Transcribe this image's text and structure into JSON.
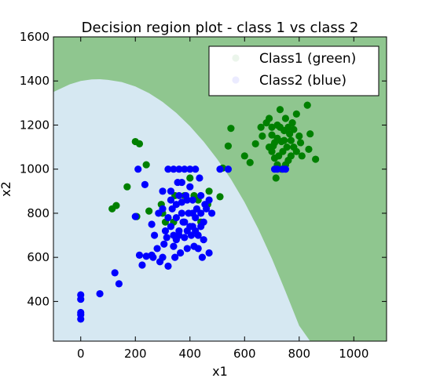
{
  "chart_data": {
    "type": "scatter",
    "title": "Decision region plot - class 1 vs class 2",
    "xlabel": "x1",
    "ylabel": "x2",
    "xlim": [
      -100,
      1120
    ],
    "ylim": [
      220,
      1600
    ],
    "xticks": [
      0,
      200,
      400,
      600,
      800,
      1000
    ],
    "yticks": [
      400,
      600,
      800,
      1000,
      1200,
      1400,
      1600
    ],
    "grid": false,
    "legend_position": "top-right",
    "region_colors": {
      "class1": "#8fc68f",
      "class2": "#d6e8f2"
    },
    "decision_boundary": {
      "x": [
        -100,
        -40,
        0,
        40,
        70,
        100,
        150,
        200,
        250,
        300,
        350,
        400,
        450,
        500,
        550,
        600,
        650,
        700,
        750,
        800,
        840
      ],
      "y": [
        1350,
        1385,
        1400,
        1407,
        1408,
        1405,
        1395,
        1375,
        1345,
        1305,
        1255,
        1195,
        1125,
        1045,
        955,
        850,
        730,
        595,
        445,
        290,
        220
      ]
    },
    "series": [
      {
        "name": "Class1 (green)",
        "color": "#008000",
        "points": [
          [
            200,
            1125
          ],
          [
            215,
            1115
          ],
          [
            240,
            1020
          ],
          [
            115,
            820
          ],
          [
            130,
            835
          ],
          [
            170,
            920
          ],
          [
            205,
            785
          ],
          [
            250,
            810
          ],
          [
            295,
            840
          ],
          [
            300,
            800
          ],
          [
            310,
            760
          ],
          [
            340,
            760
          ],
          [
            345,
            880
          ],
          [
            380,
            880
          ],
          [
            400,
            960
          ],
          [
            415,
            880
          ],
          [
            430,
            860
          ],
          [
            440,
            760
          ],
          [
            465,
            840
          ],
          [
            470,
            900
          ],
          [
            510,
            875
          ],
          [
            520,
            1005
          ],
          [
            540,
            1105
          ],
          [
            550,
            1185
          ],
          [
            600,
            1060
          ],
          [
            620,
            1030
          ],
          [
            640,
            1115
          ],
          [
            660,
            1190
          ],
          [
            665,
            1150
          ],
          [
            680,
            1210
          ],
          [
            690,
            1230
          ],
          [
            700,
            1155
          ],
          [
            705,
            1105
          ],
          [
            710,
            1050
          ],
          [
            715,
            960
          ],
          [
            720,
            1200
          ],
          [
            730,
            1270
          ],
          [
            735,
            1125
          ],
          [
            740,
            1080
          ],
          [
            745,
            1175
          ],
          [
            750,
            1230
          ],
          [
            755,
            1100
          ],
          [
            760,
            1040
          ],
          [
            765,
            1160
          ],
          [
            770,
            1130
          ],
          [
            775,
            1210
          ],
          [
            780,
            1180
          ],
          [
            790,
            1250
          ],
          [
            800,
            1150
          ],
          [
            805,
            1120
          ],
          [
            810,
            1060
          ],
          [
            830,
            1290
          ],
          [
            835,
            1090
          ],
          [
            840,
            1160
          ],
          [
            860,
            1045
          ],
          [
            700,
            1080
          ],
          [
            710,
            1120
          ],
          [
            720,
            1140
          ],
          [
            730,
            1190
          ],
          [
            725,
            1060
          ],
          [
            745,
            1130
          ],
          [
            760,
            1190
          ],
          [
            780,
            1100
          ],
          [
            790,
            1080
          ],
          [
            700,
            1190
          ],
          [
            770,
            1060
          ],
          [
            750,
            1020
          ],
          [
            720,
            1020
          ],
          [
            735,
            1000
          ],
          [
            690,
            1100
          ]
        ]
      },
      {
        "name": "Class2 (blue)",
        "color": "#0000ff",
        "points": [
          [
            0,
            430
          ],
          [
            0,
            410
          ],
          [
            0,
            350
          ],
          [
            0,
            340
          ],
          [
            0,
            320
          ],
          [
            70,
            435
          ],
          [
            125,
            530
          ],
          [
            140,
            480
          ],
          [
            200,
            785
          ],
          [
            210,
            1000
          ],
          [
            215,
            610
          ],
          [
            225,
            565
          ],
          [
            235,
            930
          ],
          [
            240,
            605
          ],
          [
            260,
            610
          ],
          [
            260,
            750
          ],
          [
            265,
            600
          ],
          [
            270,
            700
          ],
          [
            280,
            640
          ],
          [
            285,
            800
          ],
          [
            290,
            580
          ],
          [
            300,
            900
          ],
          [
            300,
            600
          ],
          [
            305,
            660
          ],
          [
            310,
            720
          ],
          [
            315,
            690
          ],
          [
            320,
            1000
          ],
          [
            320,
            560
          ],
          [
            330,
            740
          ],
          [
            335,
            820
          ],
          [
            340,
            1000
          ],
          [
            340,
            650
          ],
          [
            345,
            600
          ],
          [
            350,
            780
          ],
          [
            355,
            940
          ],
          [
            360,
            1000
          ],
          [
            360,
            700
          ],
          [
            365,
            620
          ],
          [
            370,
            850
          ],
          [
            375,
            760
          ],
          [
            380,
            1000
          ],
          [
            380,
            690
          ],
          [
            385,
            880
          ],
          [
            390,
            640
          ],
          [
            395,
            800
          ],
          [
            400,
            1000
          ],
          [
            400,
            920
          ],
          [
            400,
            740
          ],
          [
            405,
            700
          ],
          [
            410,
            860
          ],
          [
            415,
            650
          ],
          [
            420,
            1000
          ],
          [
            420,
            780
          ],
          [
            425,
            820
          ],
          [
            430,
            700
          ],
          [
            435,
            960
          ],
          [
            440,
            880
          ],
          [
            445,
            600
          ],
          [
            450,
            760
          ],
          [
            455,
            840
          ],
          [
            460,
            820
          ],
          [
            470,
            860
          ],
          [
            480,
            800
          ],
          [
            330,
            860
          ],
          [
            350,
            840
          ],
          [
            370,
            800
          ],
          [
            380,
            760
          ],
          [
            390,
            720
          ],
          [
            410,
            740
          ],
          [
            360,
            720
          ],
          [
            340,
            700
          ],
          [
            320,
            780
          ],
          [
            300,
            820
          ],
          [
            350,
            680
          ],
          [
            420,
            720
          ],
          [
            440,
            800
          ],
          [
            410,
            800
          ],
          [
            390,
            860
          ],
          [
            360,
            880
          ],
          [
            440,
            740
          ],
          [
            330,
            900
          ],
          [
            370,
            940
          ],
          [
            540,
            1000
          ],
          [
            510,
            1000
          ],
          [
            710,
            1000
          ],
          [
            720,
            1000
          ],
          [
            740,
            1000
          ],
          [
            750,
            1000
          ],
          [
            470,
            620
          ],
          [
            430,
            640
          ],
          [
            450,
            680
          ]
        ]
      }
    ]
  }
}
